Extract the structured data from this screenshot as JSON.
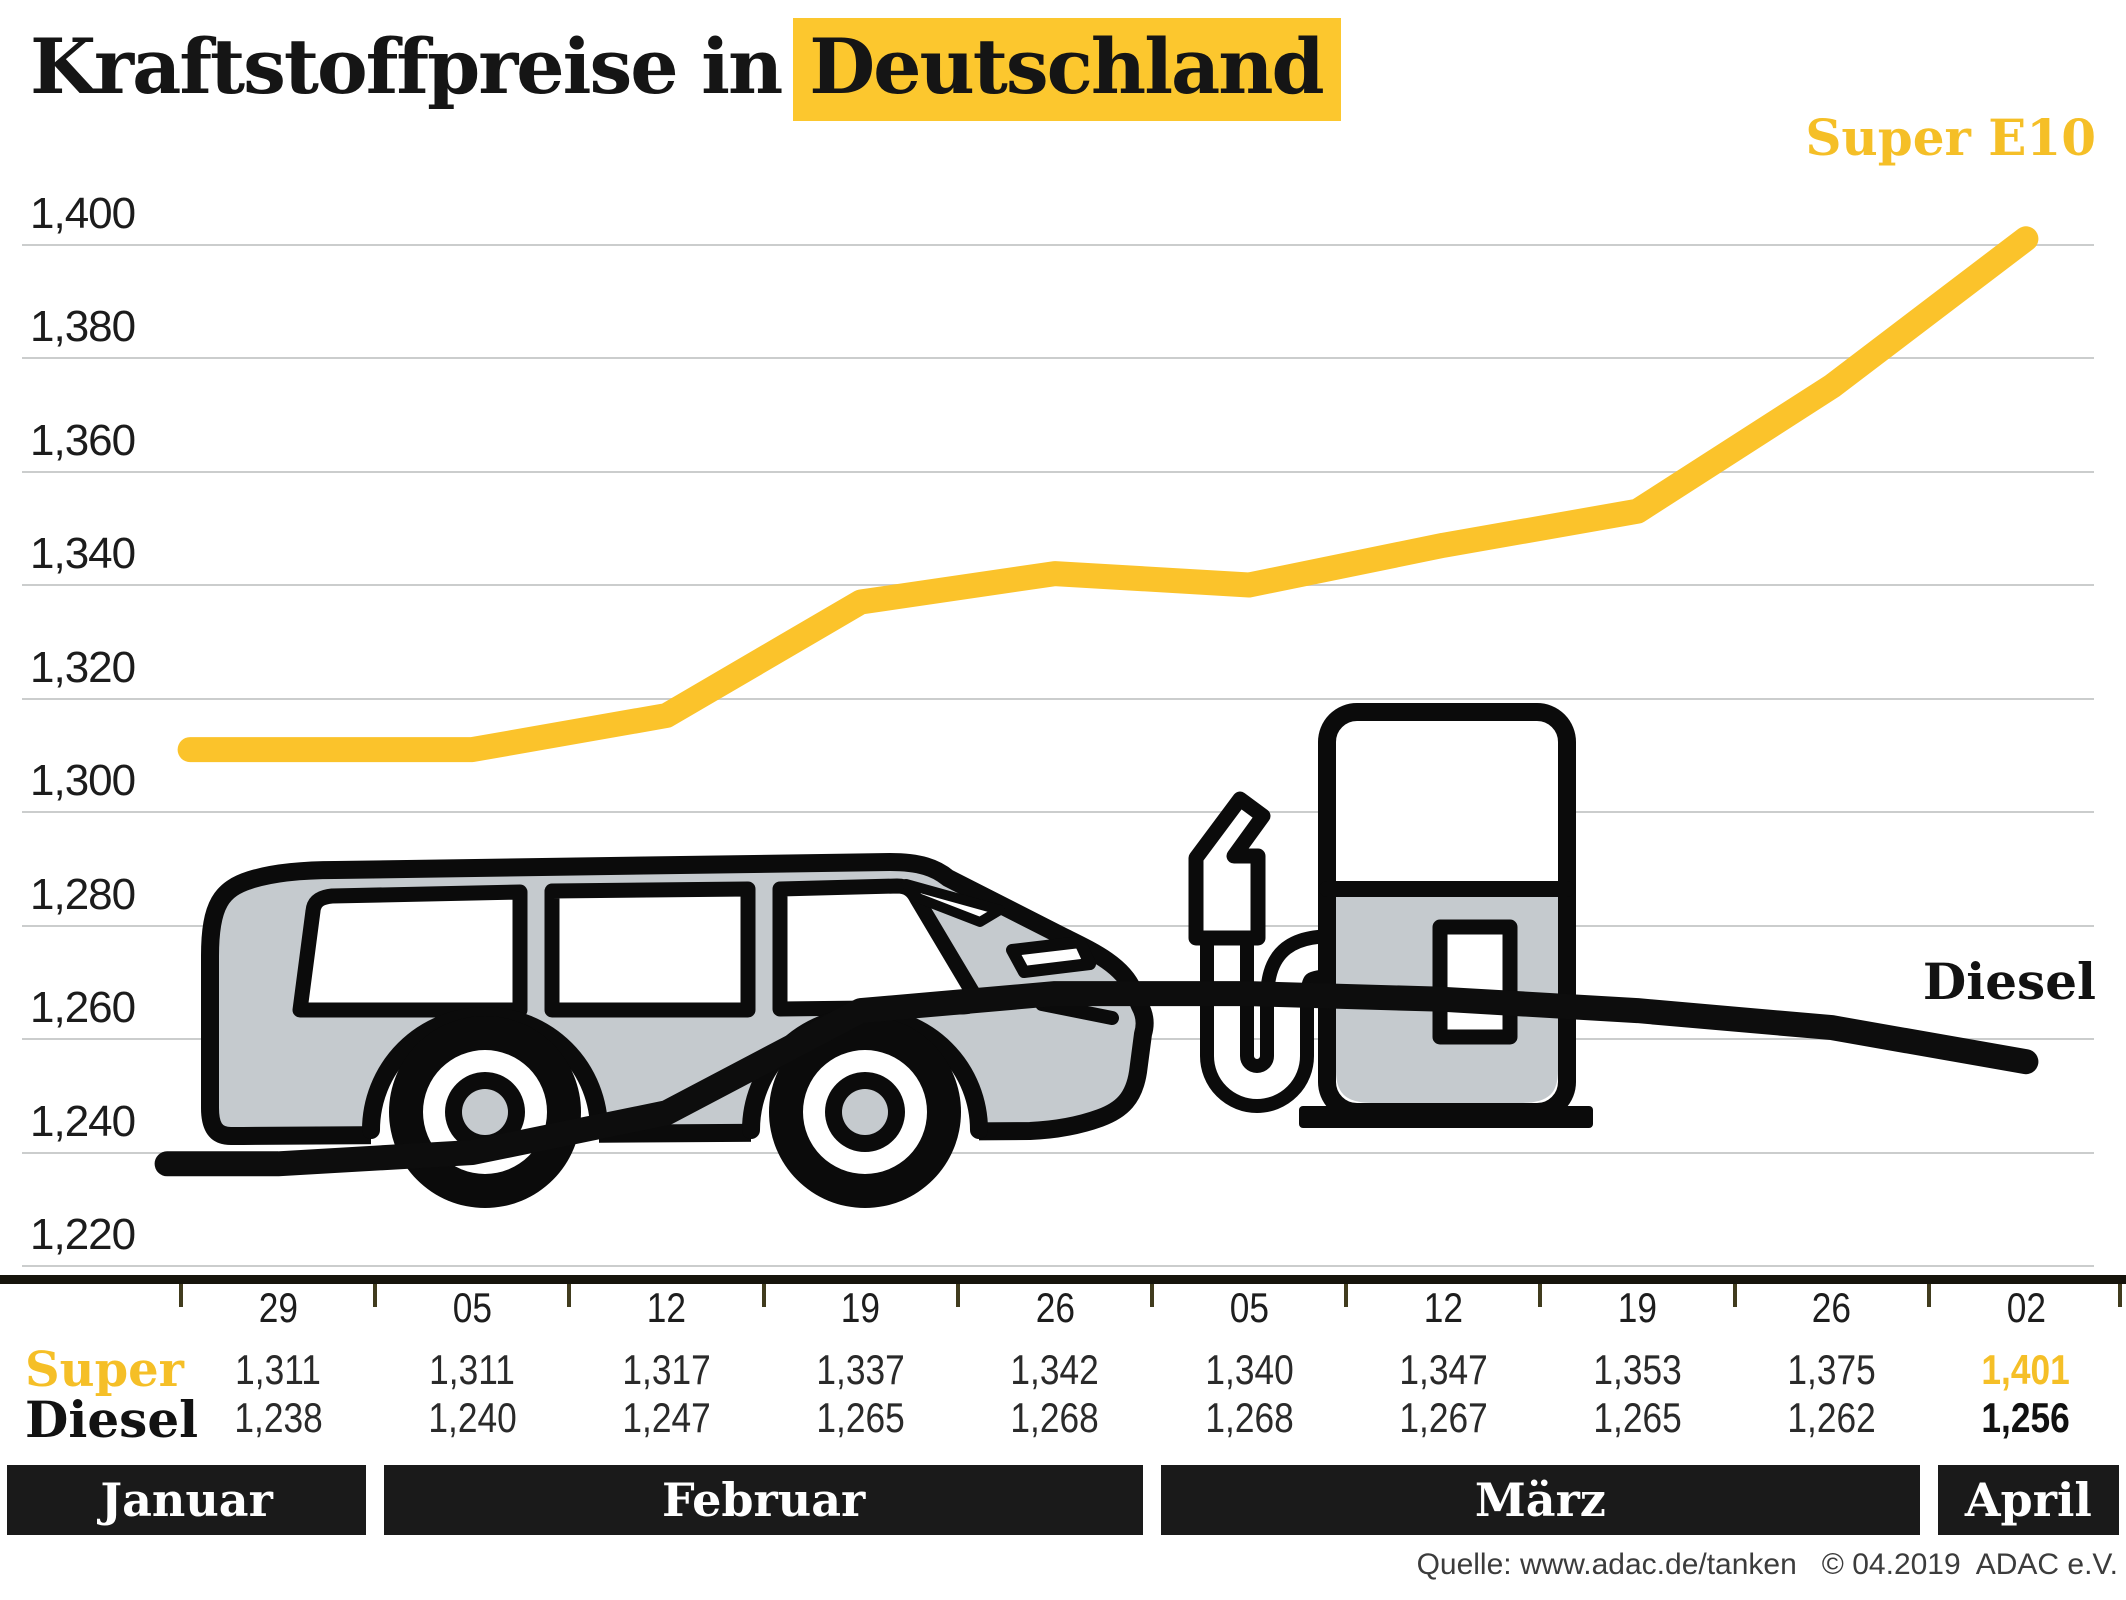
{
  "title": {
    "plain": "Kraftstoffpreise in",
    "highlight": "Deutschland"
  },
  "colors": {
    "yellow_line": "#FBC32B",
    "yellow_text": "#F5BF27",
    "title_highlight_bg": "#FCC72E",
    "black_line": "#0d0d0d",
    "gridline": "#CBCDCD",
    "month_band_bg": "#1A1A1A",
    "icon_gray": "#C5CACE"
  },
  "chart_data": {
    "type": "line",
    "title": "Kraftstoffpreise in Deutschland",
    "categories": [
      "29",
      "05",
      "12",
      "19",
      "26",
      "05",
      "12",
      "19",
      "26",
      "02"
    ],
    "y_ticks": [
      "1,400",
      "1,380",
      "1,360",
      "1,340",
      "1,320",
      "1,300",
      "1,280",
      "1,260",
      "1,240",
      "1,220"
    ],
    "y_range": [
      1.22,
      1.4
    ],
    "grid": true,
    "legend_position": "inline-end-labels",
    "series": [
      {
        "name": "Super E10",
        "row_label": "Super",
        "values": [
          1.311,
          1.311,
          1.317,
          1.337,
          1.342,
          1.34,
          1.347,
          1.353,
          1.375,
          1.401
        ],
        "display": [
          "1,311",
          "1,311",
          "1,317",
          "1,337",
          "1,342",
          "1,340",
          "1,347",
          "1,353",
          "1,375",
          "1,401"
        ]
      },
      {
        "name": "Diesel",
        "row_label": "Diesel",
        "values": [
          1.238,
          1.24,
          1.247,
          1.265,
          1.268,
          1.268,
          1.267,
          1.265,
          1.262,
          1.256
        ],
        "display": [
          "1,238",
          "1,240",
          "1,247",
          "1,265",
          "1,268",
          "1,268",
          "1,267",
          "1,265",
          "1,262",
          "1,256"
        ]
      }
    ],
    "months": [
      {
        "label": "Januar",
        "cols": [
          0,
          0
        ]
      },
      {
        "label": "Februar",
        "cols": [
          1,
          4
        ]
      },
      {
        "label": "März",
        "cols": [
          5,
          8
        ]
      },
      {
        "label": "April",
        "cols": [
          9,
          9
        ]
      }
    ]
  },
  "footer": {
    "text": "Quelle: www.adac.de/tanken   © 04.2019  ADAC e.V."
  }
}
